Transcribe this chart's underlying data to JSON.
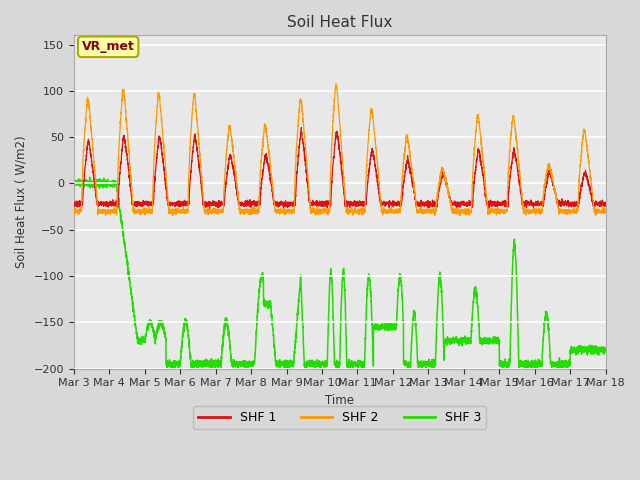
{
  "title": "Soil Heat Flux",
  "ylabel": "Soil Heat Flux ( W/m2)",
  "xlabel": "Time",
  "ylim": [
    -200,
    160
  ],
  "yticks": [
    -200,
    -150,
    -100,
    -50,
    0,
    50,
    100,
    150
  ],
  "fig_bg": "#d8d8d8",
  "plot_bg": "#e8e8e8",
  "shf1_color": "#dd1111",
  "shf2_color": "#ff9900",
  "shf3_color": "#22dd00",
  "legend_label1": "SHF 1",
  "legend_label2": "SHF 2",
  "legend_label3": "SHF 3",
  "annotation_text": "VR_met",
  "annotation_color": "#880000",
  "annotation_bg": "#ffffaa",
  "annotation_border": "#aaaa00",
  "n_days": 15,
  "ppd": 288,
  "x_label_days": [
    0,
    1,
    2,
    3,
    4,
    5,
    6,
    7,
    8,
    9,
    10,
    11,
    12,
    13,
    14,
    15
  ],
  "x_label_names": [
    "Mar 3",
    "Mar 4",
    "Mar 5",
    "Mar 6",
    "Mar 7",
    "Mar 8",
    "Mar 9",
    "Mar 10",
    "Mar 11",
    "Mar 12",
    "Mar 13",
    "Mar 14",
    "Mar 15",
    "Mar 16",
    "Mar 17",
    "Mar 18"
  ]
}
